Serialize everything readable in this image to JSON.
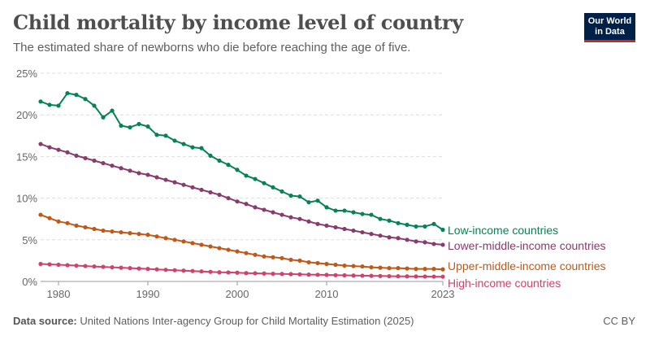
{
  "header": {
    "title": "Child mortality by income level of country",
    "subtitle": "The estimated share of newborns who die before reaching the age of five."
  },
  "logo": {
    "line1": "Our World",
    "line2": "in Data",
    "bg_color": "#002147",
    "accent_color": "#ce261e"
  },
  "footer": {
    "source_label": "Data source:",
    "source_text": "United Nations Inter-agency Group for Child Mortality Estimation (2025)",
    "license": "CC BY"
  },
  "chart_data": {
    "type": "line",
    "xlim": [
      1978,
      2023
    ],
    "ylim": [
      0,
      25
    ],
    "x_ticks": [
      1980,
      1990,
      2000,
      2010,
      2023
    ],
    "y_ticks": [
      0,
      5,
      10,
      15,
      20,
      25
    ],
    "y_tick_labels": [
      "0%",
      "5%",
      "10%",
      "15%",
      "20%",
      "25%"
    ],
    "grid": "horizontal-dashed",
    "legend": "right, labels at line ends",
    "x": [
      1978,
      1979,
      1980,
      1981,
      1982,
      1983,
      1984,
      1985,
      1986,
      1987,
      1988,
      1989,
      1990,
      1991,
      1992,
      1993,
      1994,
      1995,
      1996,
      1997,
      1998,
      1999,
      2000,
      2001,
      2002,
      2003,
      2004,
      2005,
      2006,
      2007,
      2008,
      2009,
      2010,
      2011,
      2012,
      2013,
      2014,
      2015,
      2016,
      2017,
      2018,
      2019,
      2020,
      2021,
      2022,
      2023
    ],
    "series": [
      {
        "name": "Low-income countries",
        "color": "#058355",
        "values": [
          21.6,
          21.2,
          21.1,
          22.6,
          22.4,
          21.9,
          21.1,
          19.7,
          20.5,
          18.7,
          18.5,
          18.9,
          18.6,
          17.6,
          17.5,
          16.9,
          16.5,
          16.1,
          16.0,
          15.1,
          14.5,
          14.0,
          13.4,
          12.7,
          12.3,
          11.8,
          11.3,
          10.8,
          10.3,
          10.2,
          9.5,
          9.7,
          8.9,
          8.5,
          8.5,
          8.3,
          8.1,
          8.0,
          7.5,
          7.3,
          7.0,
          6.8,
          6.6,
          6.6,
          6.9,
          6.2
        ]
      },
      {
        "name": "Lower-middle-income countries",
        "color": "#883b6c",
        "values": [
          16.5,
          16.1,
          15.8,
          15.5,
          15.1,
          14.8,
          14.5,
          14.2,
          13.9,
          13.6,
          13.3,
          13.0,
          12.8,
          12.5,
          12.2,
          11.9,
          11.6,
          11.3,
          11.0,
          10.7,
          10.4,
          10.0,
          9.6,
          9.3,
          8.9,
          8.6,
          8.3,
          8.0,
          7.7,
          7.5,
          7.2,
          6.9,
          6.7,
          6.5,
          6.3,
          6.1,
          5.9,
          5.7,
          5.5,
          5.3,
          5.2,
          5.0,
          4.8,
          4.7,
          4.5,
          4.4
        ]
      },
      {
        "name": "Upper-middle-income countries",
        "color": "#c05917",
        "values": [
          8.0,
          7.6,
          7.2,
          7.0,
          6.7,
          6.5,
          6.3,
          6.1,
          6.0,
          5.9,
          5.8,
          5.7,
          5.6,
          5.4,
          5.2,
          5.0,
          4.8,
          4.6,
          4.4,
          4.2,
          4.0,
          3.8,
          3.6,
          3.4,
          3.2,
          3.0,
          2.9,
          2.8,
          2.6,
          2.5,
          2.3,
          2.2,
          2.1,
          2.0,
          1.9,
          1.85,
          1.8,
          1.7,
          1.65,
          1.6,
          1.6,
          1.55,
          1.5,
          1.5,
          1.5,
          1.45
        ]
      },
      {
        "name": "High-income countries",
        "color": "#d1426b",
        "values": [
          2.1,
          2.05,
          2.0,
          1.95,
          1.9,
          1.85,
          1.8,
          1.75,
          1.7,
          1.65,
          1.6,
          1.55,
          1.5,
          1.45,
          1.4,
          1.35,
          1.3,
          1.25,
          1.2,
          1.15,
          1.1,
          1.08,
          1.05,
          1.0,
          0.98,
          0.95,
          0.92,
          0.9,
          0.88,
          0.85,
          0.82,
          0.8,
          0.78,
          0.75,
          0.73,
          0.71,
          0.69,
          0.67,
          0.65,
          0.63,
          0.62,
          0.61,
          0.6,
          0.59,
          0.58,
          0.57
        ]
      }
    ]
  }
}
